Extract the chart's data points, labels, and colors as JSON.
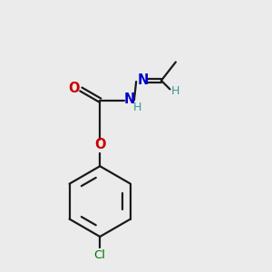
{
  "bg_color": "#ebebeb",
  "bond_color": "#1a1a1a",
  "o_color": "#cc0000",
  "n_color": "#0000cc",
  "cl_color": "#007700",
  "h_color": "#339999",
  "lw": 1.6,
  "fig_w": 3.0,
  "fig_h": 3.0,
  "dpi": 100,
  "xlim": [
    0,
    10
  ],
  "ylim": [
    0,
    10
  ]
}
